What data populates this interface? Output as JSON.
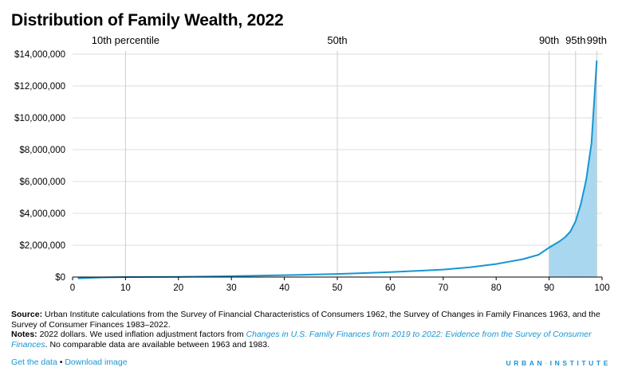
{
  "title": "Distribution of Family Wealth, 2022",
  "colors": {
    "line": "#1696d2",
    "fill": "#a9d7f0",
    "grid": "#dedddd",
    "ref": "#cccccc"
  },
  "chart_data": {
    "type": "area",
    "xlim": [
      0,
      100
    ],
    "ylim": [
      0,
      14000000
    ],
    "x_ticks": [
      0,
      10,
      20,
      30,
      40,
      50,
      60,
      70,
      80,
      90,
      100
    ],
    "y_ticks": [
      {
        "value": 0,
        "label": "$0"
      },
      {
        "value": 2000000,
        "label": "$2,000,000"
      },
      {
        "value": 4000000,
        "label": "$4,000,000"
      },
      {
        "value": 6000000,
        "label": "$6,000,000"
      },
      {
        "value": 8000000,
        "label": "$8,000,000"
      },
      {
        "value": 10000000,
        "label": "$10,000,000"
      },
      {
        "value": 12000000,
        "label": "$12,000,000"
      },
      {
        "value": 14000000,
        "label": "$14,000,000"
      }
    ],
    "reference_lines": [
      {
        "x": 10,
        "label": "10th percentile"
      },
      {
        "x": 50,
        "label": "50th"
      },
      {
        "x": 90,
        "label": "90th"
      },
      {
        "x": 95,
        "label": "95th"
      },
      {
        "x": 99,
        "label": "99th"
      }
    ],
    "shaded_from": 90,
    "x": [
      1,
      5,
      10,
      15,
      20,
      25,
      30,
      35,
      40,
      45,
      50,
      55,
      60,
      65,
      70,
      75,
      80,
      85,
      88,
      90,
      92,
      93,
      94,
      95,
      96,
      97,
      98,
      99
    ],
    "values": [
      -80000,
      -30000,
      0,
      5000,
      15000,
      30000,
      55000,
      85000,
      120000,
      155000,
      195000,
      250000,
      310000,
      390000,
      470000,
      610000,
      820000,
      1120000,
      1400000,
      1850000,
      2250000,
      2500000,
      2850000,
      3500000,
      4600000,
      6100000,
      8400000,
      13600000
    ],
    "grid": true
  },
  "notes": {
    "source_label": "Source:",
    "source_text": "Urban Institute calculations from the Survey of Financial Characteristics of Consumers 1962, the Survey of Changes in Family Finances 1963, and the Survey of Consumer Finances 1983–2022.",
    "notes_label": "Notes:",
    "notes_text_1": "2022 dollars. We used inflation adjustment factors from",
    "notes_link": "Changes in U.S. Family Finances from 2019 to 2022: Evidence from the Survey of Consumer Finances",
    "notes_text_2": ". No comparable data are available between 1963 and 1983."
  },
  "footer": {
    "get_data": "Get the data",
    "separator": "•",
    "download": "Download image",
    "brand_left": "URBAN",
    "brand_dot": "·",
    "brand_right": "INSTITUTE"
  }
}
